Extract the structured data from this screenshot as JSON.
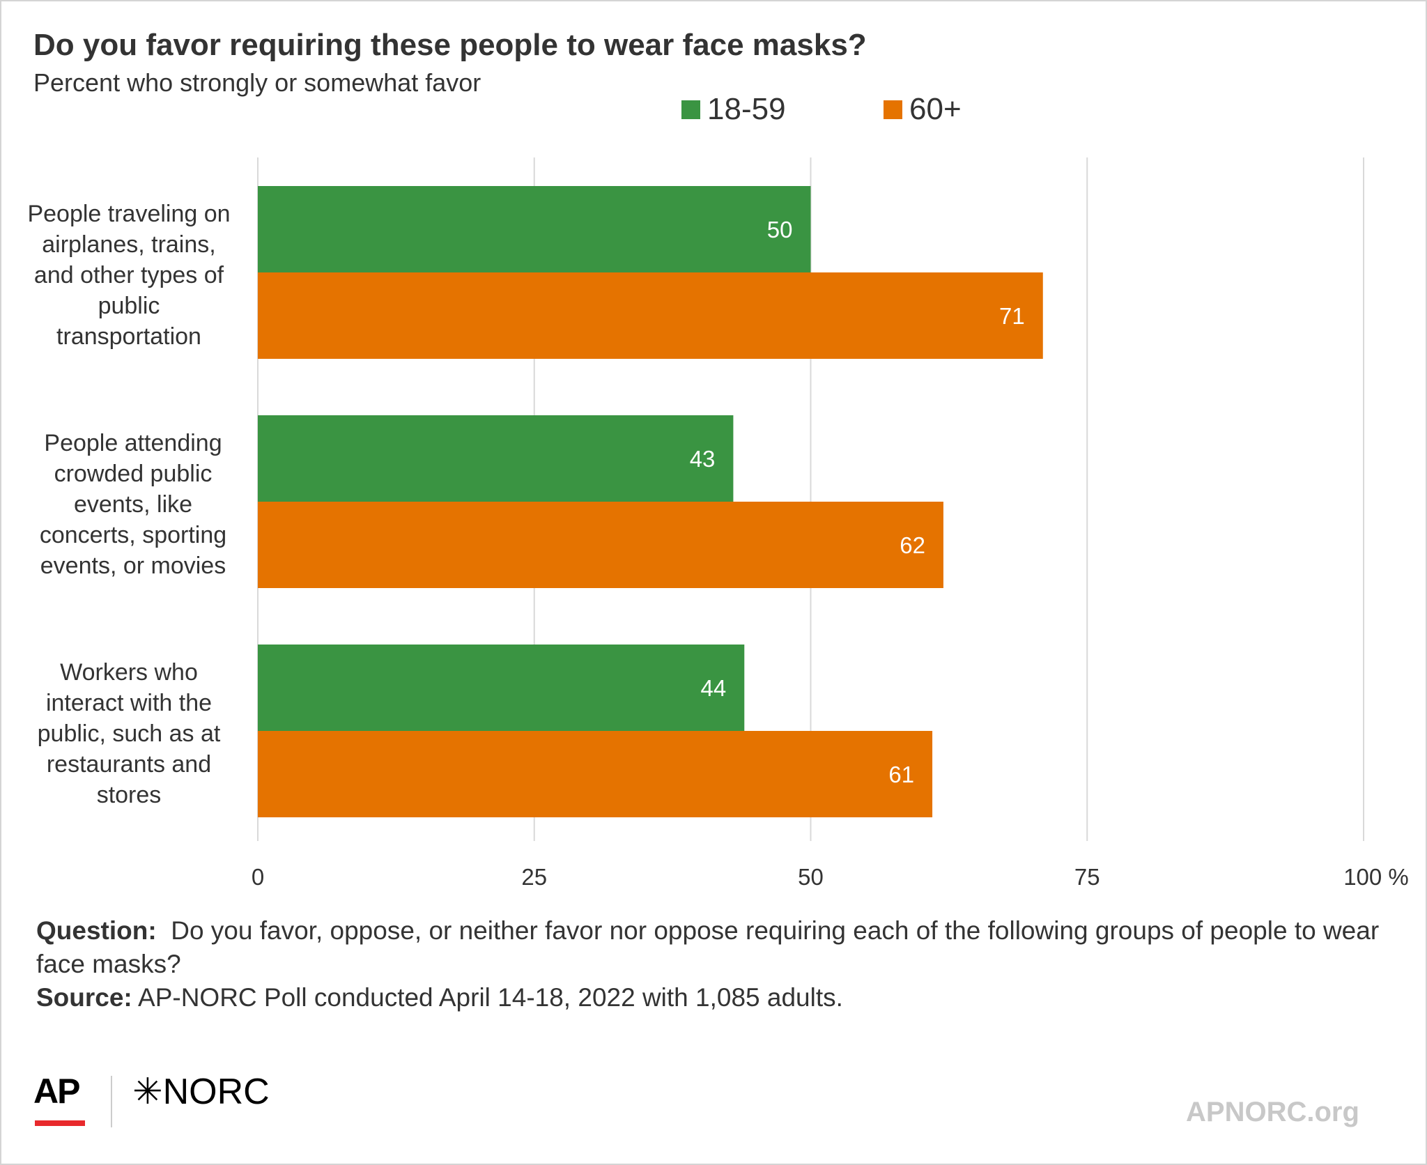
{
  "title": "Do you favor requiring these people to wear face masks?",
  "subtitle": "Percent who strongly or somewhat favor",
  "colors": {
    "series1": "#3a9442",
    "series2": "#e57300",
    "grid": "#d9d9d9",
    "text": "#333333"
  },
  "chart_data": {
    "type": "bar",
    "orientation": "horizontal",
    "categories": [
      "People traveling on airplanes, trains, and other types of public transportation",
      "People attending crowded public events, like concerts, sporting events, or movies",
      "Workers who interact with the public, such as at restaurants and stores"
    ],
    "category_lines": [
      [
        "People traveling on",
        "airplanes, trains,",
        "and other types of",
        "public",
        "transportation"
      ],
      [
        "People attending",
        "crowded public",
        "events, like",
        "concerts, sporting",
        "events, or movies"
      ],
      [
        "Workers who",
        "interact with the",
        "public, such as at",
        "restaurants and",
        "stores"
      ]
    ],
    "series": [
      {
        "name": "18-59",
        "values": [
          50,
          43,
          44
        ]
      },
      {
        "name": "60+",
        "values": [
          71,
          62,
          61
        ]
      }
    ],
    "xlim": [
      0,
      100
    ],
    "xticks": [
      0,
      25,
      50,
      75,
      100
    ],
    "xtick_labels": [
      "0",
      "25",
      "50",
      "75",
      "100 %"
    ],
    "grid": true,
    "legend_position": "top"
  },
  "footer": {
    "question_label": "Question:",
    "question_text": "Do you favor, oppose, or neither favor nor oppose requiring each of the following groups of people to wear face masks?",
    "source_label": "Source:",
    "source_text": "AP-NORC Poll conducted April 14-18, 2022 with 1,085 adults."
  },
  "logos": {
    "ap": "AP",
    "norc": "✳NORC",
    "site": "APNORC.org"
  }
}
